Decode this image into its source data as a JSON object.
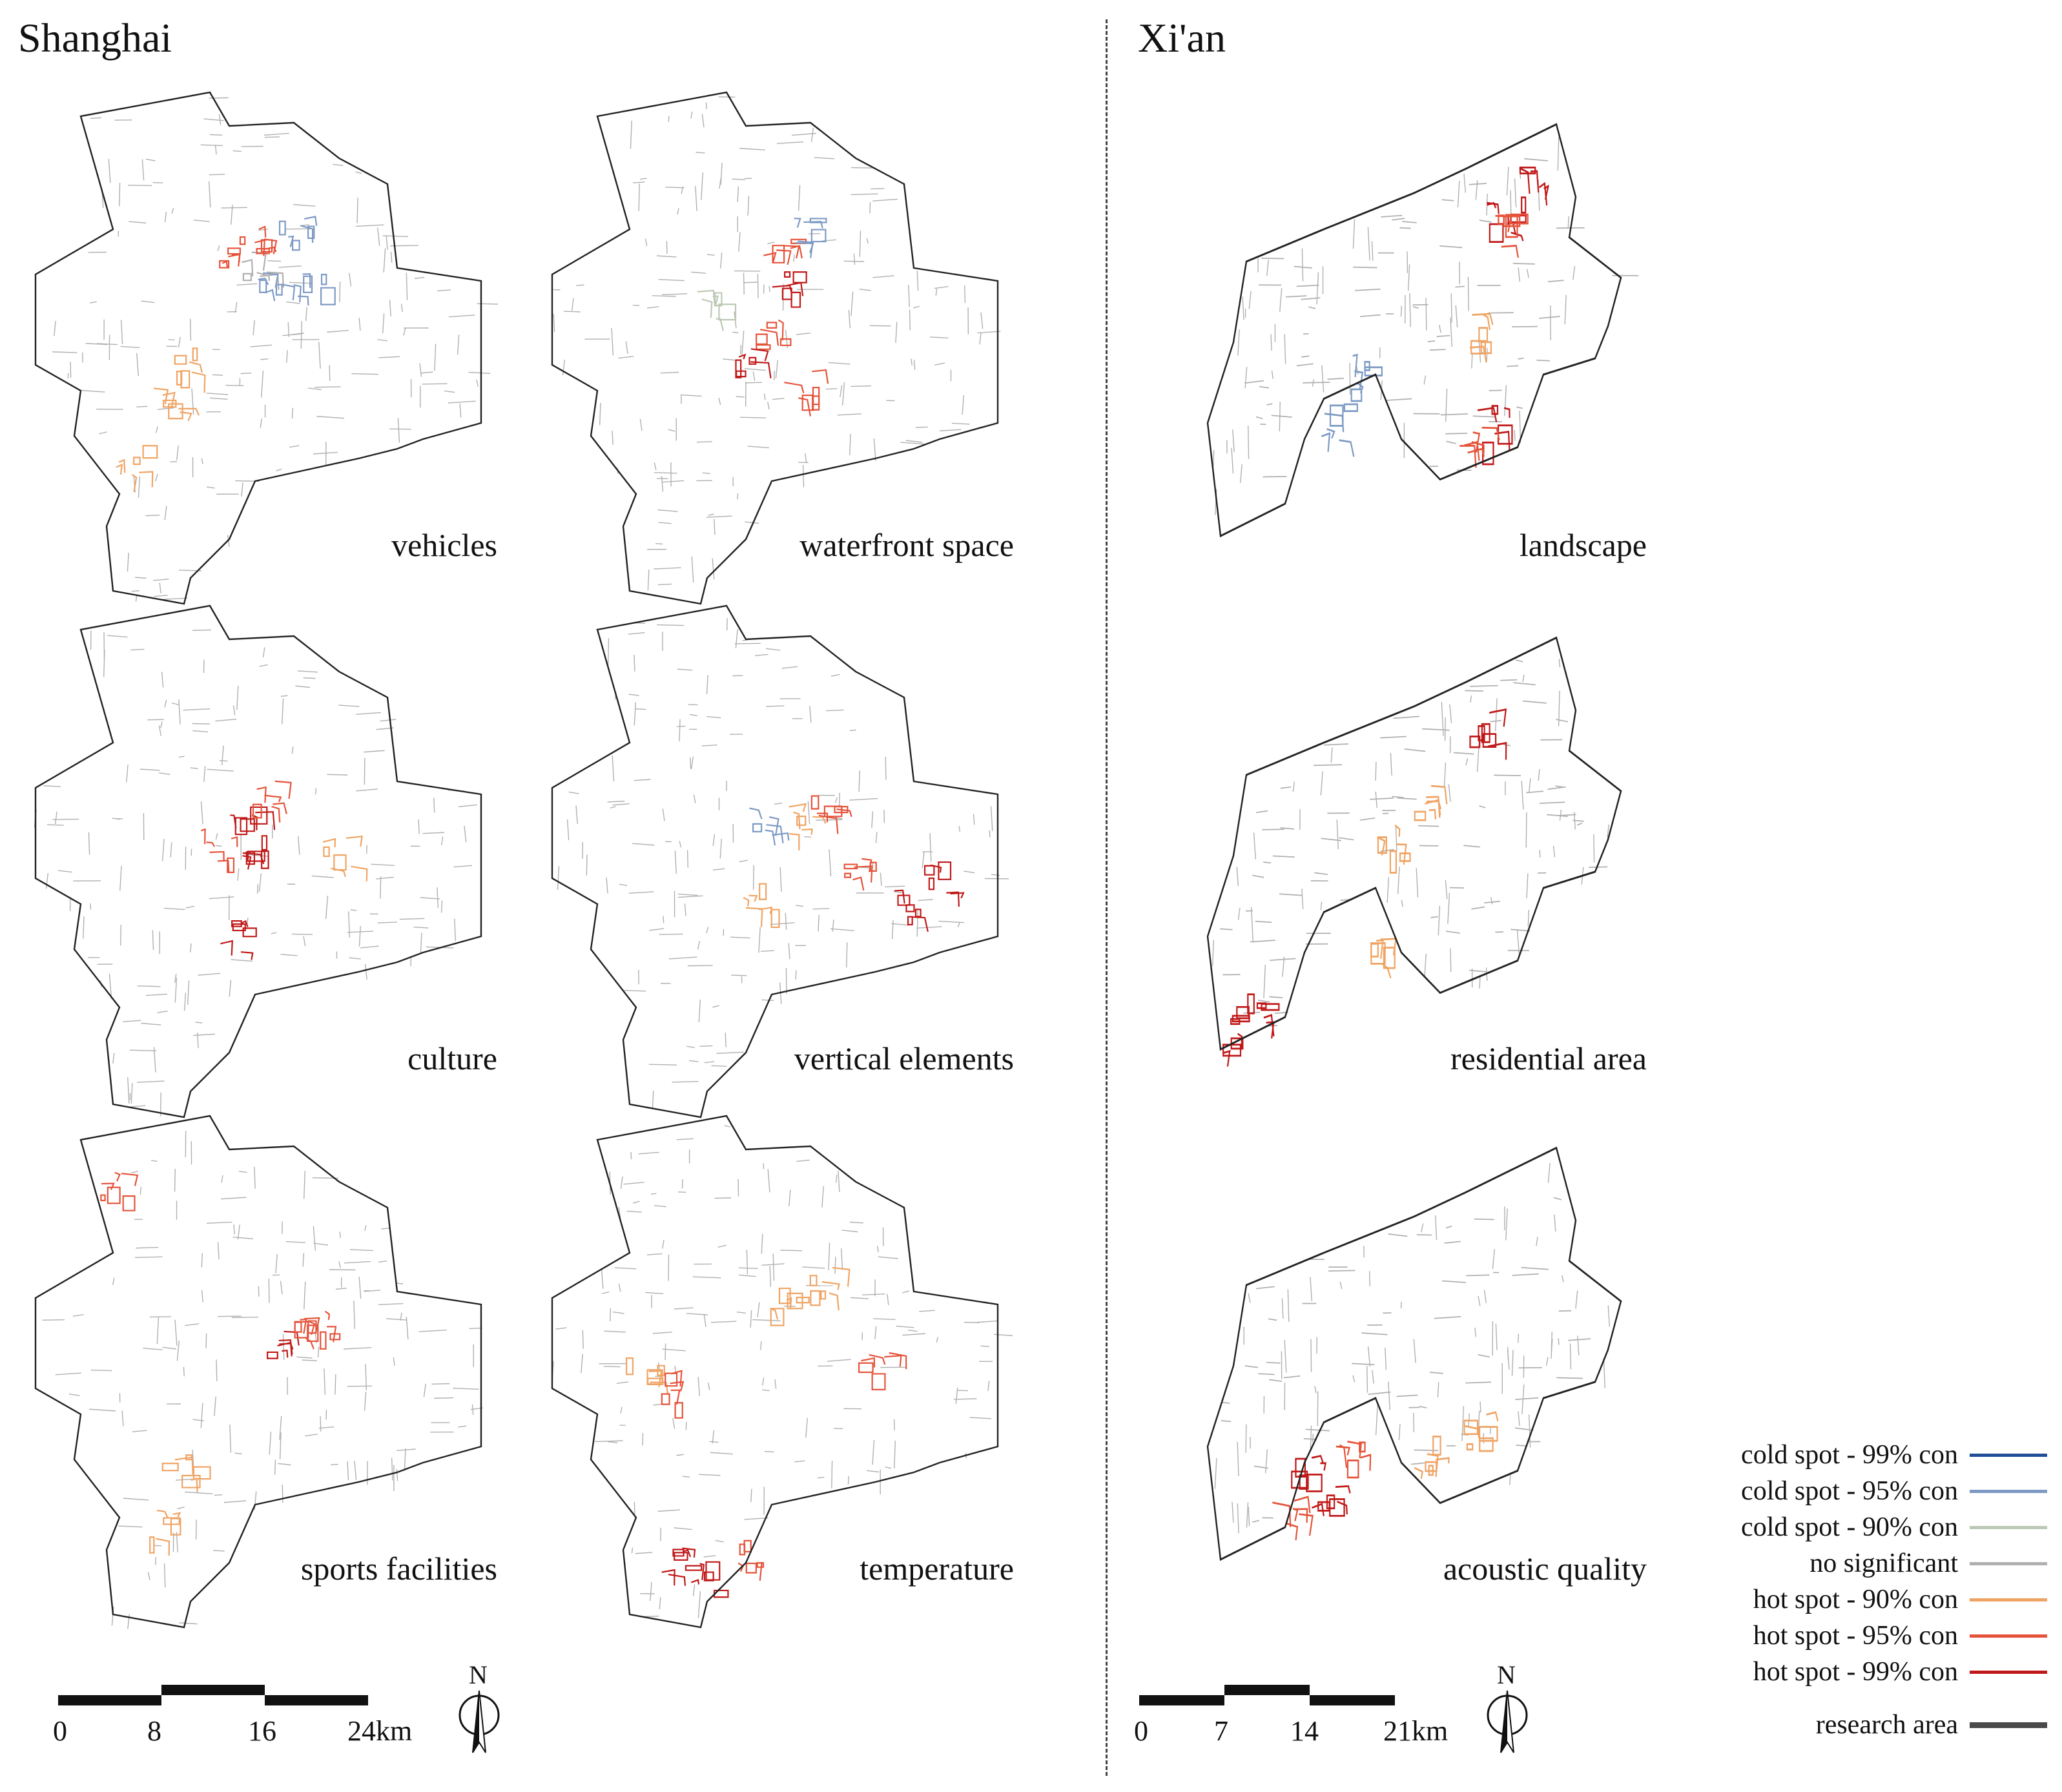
{
  "cities": {
    "shanghai": {
      "title": "Shanghai",
      "panels": [
        "vehicles",
        "waterfront space",
        "culture",
        "vertical elements",
        "sports facilities",
        "temperature"
      ],
      "scale": {
        "ticks": [
          "0",
          "8",
          "16",
          "24km"
        ]
      },
      "north": "N"
    },
    "xian": {
      "title": "Xi'an",
      "panels": [
        "landscape",
        "residential area",
        "acoustic quality"
      ],
      "scale": {
        "ticks": [
          "0",
          "7",
          "14",
          "21km"
        ]
      },
      "north": "N"
    }
  },
  "legend": {
    "items": [
      {
        "label": "cold spot - 99% con",
        "color": "#1f4e96"
      },
      {
        "label": "cold spot - 95% con",
        "color": "#7d9ac4"
      },
      {
        "label": "cold spot - 90% con",
        "color": "#bcc9b4"
      },
      {
        "label": "no significant",
        "color": "#b0b0b0"
      },
      {
        "label": "hot spot - 90% con",
        "color": "#f0a464"
      },
      {
        "label": "hot spot - 95% con",
        "color": "#e5533a"
      },
      {
        "label": "hot spot - 99% con",
        "color": "#c01818"
      },
      {
        "label": "research area",
        "color": "#4a4a4a"
      }
    ]
  }
}
